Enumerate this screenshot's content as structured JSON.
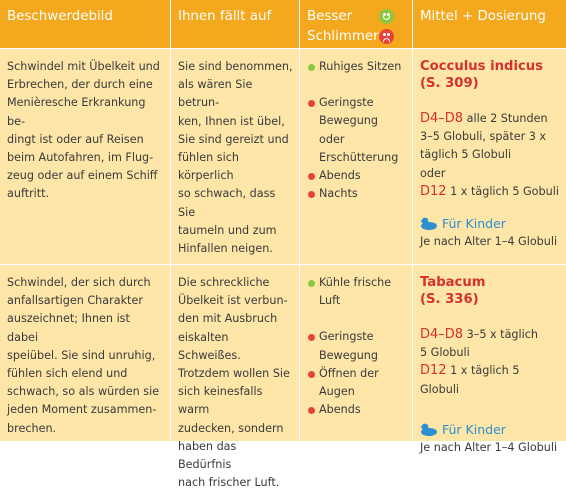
{
  "header": {
    "col1": "Beschwerdebild",
    "col2": "Ihnen fällt auf",
    "col3_top": "Besser",
    "col3_bottom": "Schlimmer",
    "col4": "Mittel + Dosierung"
  },
  "icons": {
    "better": "happy-face-icon",
    "worse": "sad-face-icon",
    "kids": "duck-icon",
    "colors": {
      "header": "#f4a81d",
      "cell": "#fde6a8",
      "green": "#8dc63f",
      "red": "#e8413a",
      "remedy": "#d7312f",
      "kid": "#2c8fd0"
    }
  },
  "rows": [
    {
      "symptom_lines": [
        "Schwindel mit Übelkeit und",
        "Erbrechen, der durch eine",
        "Menièresche Erkrankung be-",
        "dingt ist oder auf Reisen",
        "beim Autofahren, im Flug-",
        "zeug oder auf einem Schiff",
        "auftritt."
      ],
      "notice_lines": [
        "Sie sind benommen,",
        "als wären Sie betrun-",
        "ken, Ihnen ist übel,",
        "Sie sind gereizt und",
        "fühlen sich körperlich",
        "so schwach, dass Sie",
        "taumeln und zum",
        "Hinfallen neigen."
      ],
      "better": [
        "Ruhiges Sitzen"
      ],
      "worse": [
        [
          "Geringste",
          "Bewegung oder",
          "Erschütterung"
        ],
        [
          "Abends"
        ],
        [
          "Nachts"
        ]
      ],
      "remedy_name": "Cocculus indicus",
      "remedy_page": "(S. 309)",
      "dose1_k": "D4–D8",
      "dose1_rest": " alle 2 Stunden",
      "dose1_lines": [
        "3–5 Globuli, später 3 x",
        "täglich 5 Globuli",
        "oder"
      ],
      "dose2_k": "D12",
      "dose2_rest": " 1 x täglich 5 Gobuli",
      "kids_label": "Für Kinder",
      "kids_text": "Je nach Alter 1–4 Globuli"
    },
    {
      "symptom_lines": [
        "Schwindel, der sich durch",
        "anfallsartigen Charakter",
        "auszeichnet; Ihnen ist dabei",
        "speiübel. Sie sind unruhig,",
        "fühlen sich elend und",
        "schwach, so als würden sie",
        "jeden Moment zusammen-",
        "brechen."
      ],
      "notice_lines": [
        "Die schreckliche",
        "Übelkeit ist verbun-",
        "den mit Ausbruch",
        "eiskalten Schweißes.",
        "Trotzdem wollen Sie",
        "sich keinesfalls warm",
        "zudecken, sondern",
        "haben das Bedürfnis",
        "nach frischer Luft."
      ],
      "better": [
        [
          "Kühle frische",
          "Luft"
        ]
      ],
      "worse": [
        [
          "Geringste",
          "Bewegung"
        ],
        [
          "Öffnen der",
          "Augen"
        ],
        [
          "Abends"
        ]
      ],
      "remedy_name": "Tabacum",
      "remedy_page": "(S. 336)",
      "dose1_k": "D4–D8",
      "dose1_rest": " 3–5 x täglich",
      "dose1_lines": [
        "5 Globuli"
      ],
      "dose2_k": "D12",
      "dose2_rest": " 1 x täglich 5 Globuli",
      "kids_label": "Für Kinder",
      "kids_text": "Je nach Alter 1–4 Globuli"
    }
  ]
}
